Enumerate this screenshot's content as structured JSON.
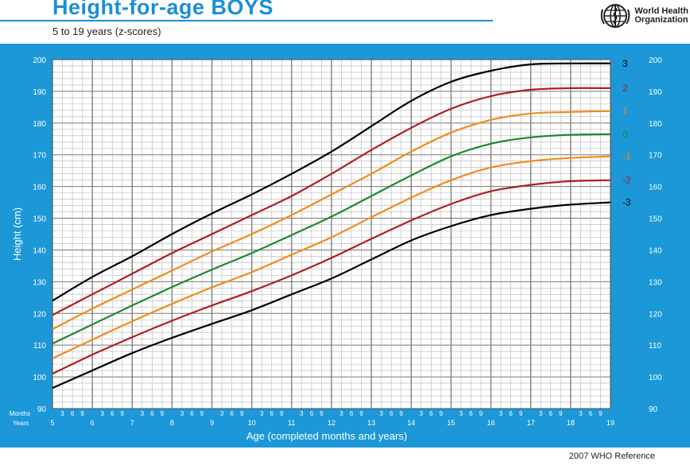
{
  "header": {
    "title": "Height-for-age  BOYS",
    "subtitle": "5 to 19 years (z-scores)",
    "org_name_line1": "World Health",
    "org_name_line2": "Organization",
    "footer_note": "2007 WHO Reference"
  },
  "colors": {
    "panel": "#1c97d8",
    "grid": "#999999",
    "sd3": "#000000",
    "sd2": "#b01e23",
    "sd1": "#f08c1c",
    "sd0": "#1e8a2c"
  },
  "chart_data": {
    "type": "line",
    "title": "Height-for-age  BOYS",
    "subtitle": "5 to 19 years (z-scores)",
    "xlabel": "Age (completed months and years)",
    "ylabel": "Height (cm)",
    "xlim": [
      5,
      19
    ],
    "ylim": [
      90,
      200
    ],
    "x_ticks": [
      5,
      6,
      7,
      8,
      9,
      10,
      11,
      12,
      13,
      14,
      15,
      16,
      17,
      18,
      19
    ],
    "y_ticks": [
      90,
      100,
      110,
      120,
      130,
      140,
      150,
      160,
      170,
      180,
      190,
      200
    ],
    "month_ticks": [
      "3",
      "6",
      "9"
    ],
    "months_label": "Months",
    "years_label": "Years",
    "grid": true,
    "x": [
      5,
      6,
      7,
      8,
      9,
      10,
      11,
      12,
      13,
      14,
      15,
      16,
      17,
      18,
      19
    ],
    "series": [
      {
        "name": "3",
        "color": "#000000",
        "values": [
          124,
          131.5,
          138,
          145,
          151.5,
          157.5,
          164,
          171,
          179,
          187,
          193,
          196.5,
          198.5,
          198.8,
          198.8
        ]
      },
      {
        "name": "2",
        "color": "#b01e23",
        "values": [
          119.5,
          126,
          132.5,
          139,
          145,
          151,
          157,
          164,
          171.5,
          178.5,
          184.5,
          188.5,
          190.5,
          191,
          191
        ]
      },
      {
        "name": "1",
        "color": "#f08c1c",
        "values": [
          115,
          121.5,
          127.5,
          133.5,
          139.5,
          145,
          151,
          157.5,
          164,
          171,
          177,
          181,
          183,
          183.5,
          183.8
        ]
      },
      {
        "name": "0",
        "color": "#1e8a2c",
        "values": [
          110.5,
          116.5,
          122.5,
          128.3,
          133.8,
          139,
          144.7,
          150.5,
          157,
          163.5,
          169.5,
          173.5,
          175.5,
          176.3,
          176.5
        ]
      },
      {
        "name": "-1",
        "color": "#f08c1c",
        "values": [
          105.8,
          111.7,
          117.5,
          123,
          128.2,
          133,
          138.5,
          144,
          150.3,
          156.5,
          162,
          166,
          168,
          169,
          169.5
        ]
      },
      {
        "name": "-2",
        "color": "#b01e23",
        "values": [
          101,
          107,
          112.5,
          117.7,
          122.5,
          127,
          132,
          137.5,
          143.5,
          149.3,
          154.5,
          158.5,
          160.5,
          161.7,
          162
        ]
      },
      {
        "name": "-3",
        "color": "#000000",
        "values": [
          96.5,
          102,
          107.5,
          112.3,
          116.7,
          121,
          126,
          131,
          137,
          143,
          147.5,
          151,
          153,
          154.3,
          155
        ]
      }
    ]
  }
}
